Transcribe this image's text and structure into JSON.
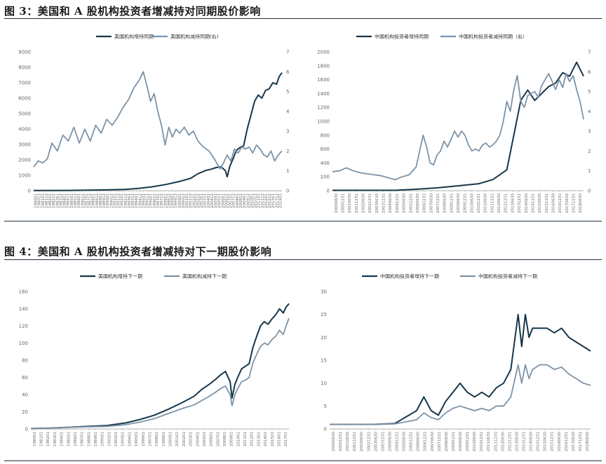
{
  "figures": [
    {
      "title": "图 3：美国和 A 股机构投资者增减持对同期股价影响"
    },
    {
      "title": "图 4：美国和 A 股机构投资者增减持对下一期股价影响"
    }
  ],
  "colors": {
    "dark": "#17364a",
    "light": "#7c93a8"
  },
  "chart_data": [
    {
      "type": "line",
      "series": [
        {
          "name": "美国机构增持同期",
          "axis": "left",
          "x": [
            0,
            20,
            40,
            60,
            80,
            100,
            115,
            130,
            145,
            160,
            172,
            180,
            188,
            195,
            200,
            205,
            210,
            212,
            215,
            218,
            222,
            226,
            230,
            234,
            238,
            242,
            246,
            250,
            254,
            258,
            262,
            266,
            269,
            272
          ],
          "values": [
            10,
            15,
            20,
            30,
            50,
            80,
            150,
            250,
            400,
            600,
            800,
            1100,
            1300,
            1400,
            1500,
            1550,
            1300,
            900,
            1600,
            2000,
            2600,
            2800,
            2900,
            4000,
            4900,
            5800,
            6200,
            6000,
            6500,
            6600,
            7000,
            6900,
            7400,
            7650
          ]
        },
        {
          "name": "美国机构减持同期(右)",
          "axis": "right",
          "x": [
            0,
            5,
            10,
            15,
            20,
            26,
            32,
            38,
            44,
            50,
            56,
            62,
            68,
            74,
            80,
            86,
            92,
            98,
            104,
            110,
            116,
            120,
            124,
            128,
            132,
            136,
            140,
            144,
            148,
            152,
            156,
            160,
            165,
            170,
            175,
            180,
            186,
            192,
            198,
            204,
            208,
            212,
            216,
            220,
            224,
            228,
            232,
            236,
            240,
            244,
            248,
            252,
            256,
            260,
            264,
            268,
            272
          ],
          "values": [
            1.2,
            1.5,
            1.4,
            1.6,
            2.4,
            2.0,
            2.8,
            2.5,
            3.2,
            2.4,
            3.1,
            2.5,
            3.3,
            2.9,
            3.6,
            3.3,
            3.7,
            4.2,
            4.6,
            5.2,
            5.6,
            6.0,
            5.3,
            4.5,
            4.9,
            4.0,
            3.3,
            2.3,
            3.2,
            2.7,
            3.1,
            2.9,
            3.2,
            2.8,
            3.0,
            2.5,
            2.2,
            2.0,
            1.6,
            1.1,
            1.4,
            1.8,
            1.5,
            2.1,
            1.9,
            2.2,
            2.1,
            2.2,
            1.9,
            2.3,
            2.1,
            1.8,
            1.7,
            2.0,
            1.5,
            1.8,
            2.0
          ]
        }
      ],
      "xticks": [
        "198001",
        "198012",
        "198101",
        "198112",
        "198201",
        "198212",
        "198301",
        "198312",
        "198401",
        "198412",
        "198501",
        "198512",
        "198601",
        "198612",
        "198701",
        "198712",
        "198801",
        "198812",
        "198901",
        "198912",
        "199001",
        "199012",
        "199101",
        "199112",
        "199201",
        "199212",
        "199301",
        "199312",
        "199401",
        "199412",
        "199501",
        "199512",
        "199601",
        "199612",
        "199701",
        "199712",
        "199801",
        "199812",
        "199901",
        "199912",
        "200001",
        "200012",
        "200101",
        "200112",
        "200201",
        "200212",
        "200301",
        "200312",
        "200401",
        "200412",
        "200501",
        "200512",
        "200601",
        "200612",
        "200701",
        "200712",
        "200801",
        "200812",
        "200901",
        "200912",
        "201001",
        "201012",
        "201101",
        "201112",
        "201201",
        "201212",
        "201301",
        "201312",
        "201401"
      ],
      "yleft": [
        0,
        1000,
        2000,
        3000,
        4000,
        5000,
        6000,
        7000,
        8000,
        9000
      ],
      "yright": [
        0,
        1,
        2,
        3,
        4,
        5,
        6,
        7
      ],
      "ylim_left": [
        0,
        9000
      ],
      "ylim_right": [
        0,
        7
      ],
      "xmax": 272
    },
    {
      "type": "line",
      "series": [
        {
          "name": "中国机构投资者增持同期",
          "axis": "left",
          "x": [
            0,
            6,
            12,
            18,
            24,
            30,
            34,
            38,
            42,
            46,
            50,
            52,
            54,
            56,
            58,
            60,
            62,
            64,
            66,
            68,
            70,
            72
          ],
          "values": [
            5,
            5,
            5,
            5,
            20,
            40,
            60,
            80,
            100,
            160,
            300,
            800,
            1300,
            1450,
            1300,
            1400,
            1500,
            1550,
            1700,
            1650,
            1850,
            1650
          ]
        },
        {
          "name": "中国机构投资者减持同期（右）",
          "axis": "right",
          "x": [
            0,
            2,
            4,
            6,
            8,
            10,
            12,
            14,
            16,
            18,
            20,
            22,
            24,
            25,
            26,
            27,
            28,
            29,
            30,
            31,
            32,
            33,
            34,
            35,
            36,
            37,
            38,
            39,
            40,
            41,
            42,
            43,
            44,
            45,
            46,
            47,
            48,
            49,
            50,
            51,
            52,
            53,
            54,
            55,
            56,
            57,
            58,
            59,
            60,
            61,
            62,
            63,
            64,
            65,
            66,
            67,
            68,
            69,
            70,
            71,
            72
          ],
          "values": [
            0.95,
            1.0,
            1.15,
            1.0,
            0.9,
            0.85,
            0.8,
            0.75,
            0.65,
            0.55,
            0.7,
            0.8,
            1.2,
            2.0,
            2.8,
            2.2,
            1.4,
            1.3,
            1.8,
            2.0,
            2.5,
            2.2,
            2.6,
            3.0,
            2.7,
            3.0,
            2.8,
            2.3,
            2.0,
            2.1,
            2.0,
            2.3,
            2.4,
            2.2,
            2.3,
            2.5,
            2.8,
            3.5,
            4.5,
            4.0,
            5.1,
            5.8,
            4.5,
            4.2,
            4.8,
            4.9,
            5.0,
            4.7,
            5.3,
            5.6,
            5.9,
            5.5,
            5.1,
            5.6,
            5.2,
            5.9,
            5.5,
            5.8,
            5.1,
            4.5,
            3.6
          ]
        }
      ],
      "xticks": [
        "20000630",
        "20001231",
        "20010630",
        "20011231",
        "20020630",
        "20021231",
        "20030630",
        "20031231",
        "20040630",
        "20041231",
        "20050630",
        "20051231",
        "20060630",
        "20061231",
        "20070630",
        "20071231",
        "20080630",
        "20081231",
        "20090630",
        "20091231",
        "20100630",
        "20101231",
        "20110630",
        "20111231",
        "20120630",
        "20121231",
        "20130630",
        "20131231",
        "20140630",
        "20141231",
        "20150630",
        "20151231",
        "20160630",
        "20161231",
        "20170630",
        "20171231",
        "20180630"
      ],
      "yleft": [
        0,
        200,
        400,
        600,
        800,
        1000,
        1200,
        1400,
        1600,
        1800,
        2000
      ],
      "yright": [
        0,
        1,
        2,
        3,
        4,
        5,
        6,
        7
      ],
      "ylim_left": [
        0,
        2000
      ],
      "ylim_right": [
        0,
        7
      ],
      "xmax": 72
    },
    {
      "type": "line",
      "series": [
        {
          "name": "美国机构增持下一期",
          "x": [
            0,
            20,
            40,
            60,
            80,
            100,
            115,
            130,
            145,
            160,
            172,
            180,
            188,
            195,
            200,
            205,
            210,
            212,
            215,
            218,
            222,
            226,
            230,
            234,
            238,
            242,
            246,
            250,
            254,
            258,
            262,
            266,
            269,
            272
          ],
          "values": [
            0.5,
            1,
            2,
            3,
            4,
            7,
            11,
            16,
            23,
            31,
            38,
            46,
            52,
            58,
            63,
            67,
            55,
            36,
            52,
            60,
            70,
            73,
            76,
            95,
            108,
            120,
            125,
            122,
            128,
            133,
            140,
            135,
            142,
            146
          ]
        },
        {
          "name": "美国机构减持下一期",
          "x": [
            0,
            20,
            40,
            60,
            80,
            100,
            115,
            130,
            145,
            160,
            172,
            180,
            188,
            195,
            200,
            205,
            210,
            212,
            215,
            218,
            222,
            226,
            230,
            234,
            238,
            242,
            246,
            250,
            254,
            258,
            262,
            266,
            269,
            272
          ],
          "values": [
            0.5,
            1,
            1.8,
            2.5,
            3,
            5,
            8,
            12,
            18,
            24,
            28,
            33,
            38,
            43,
            47,
            50,
            40,
            27,
            40,
            47,
            55,
            57,
            60,
            77,
            87,
            96,
            100,
            98,
            104,
            108,
            115,
            110,
            120,
            129
          ]
        }
      ],
      "xticks": [
        "198001",
        "198101",
        "198201",
        "198301",
        "198401",
        "198501",
        "198601",
        "198701",
        "198801",
        "198901",
        "199001",
        "199101",
        "199201",
        "199301",
        "199401",
        "199501",
        "199601",
        "199701",
        "199801",
        "199901",
        "200001",
        "200101",
        "200201",
        "200301",
        "200401",
        "200501",
        "200601",
        "200701",
        "200801",
        "200901",
        "201001",
        "201101",
        "201201",
        "201301",
        "201401",
        "201501",
        "201601",
        "201701"
      ],
      "yleft": [
        0,
        20,
        40,
        60,
        80,
        100,
        120,
        140,
        160
      ],
      "ylim_left": [
        0,
        160
      ],
      "xmax": 272
    },
    {
      "type": "line",
      "series": [
        {
          "name": "中国机构投资者增持下一期",
          "x": [
            0,
            6,
            12,
            18,
            24,
            26,
            28,
            30,
            32,
            34,
            36,
            38,
            40,
            42,
            44,
            46,
            48,
            50,
            52,
            53,
            54,
            55,
            56,
            57,
            58,
            60,
            62,
            64,
            66,
            68,
            70,
            72
          ],
          "values": [
            1,
            1,
            1,
            1.2,
            4,
            7,
            4,
            3,
            6,
            8,
            10,
            8,
            7,
            8,
            7,
            9,
            10,
            13,
            25,
            18,
            25,
            20,
            22,
            22,
            22,
            22,
            21,
            22,
            20,
            19,
            18,
            17
          ]
        },
        {
          "name": "中国机构投资者减持下一期",
          "x": [
            0,
            6,
            12,
            18,
            24,
            26,
            28,
            30,
            32,
            34,
            36,
            38,
            40,
            42,
            44,
            46,
            48,
            50,
            52,
            53,
            54,
            55,
            56,
            57,
            58,
            60,
            62,
            64,
            66,
            68,
            70,
            72
          ],
          "values": [
            1,
            1,
            1,
            1.1,
            2,
            3.5,
            2.5,
            2,
            3.5,
            4.5,
            5,
            4.5,
            4,
            4.5,
            4,
            5,
            5,
            7,
            14,
            10,
            14,
            11,
            13,
            13.5,
            14,
            14,
            13,
            13.5,
            12,
            11,
            10,
            9.5
          ]
        }
      ],
      "xticks": [
        "20000630",
        "20001231",
        "20010630",
        "20011231",
        "20020630",
        "20021231",
        "20030630",
        "20031231",
        "20040630",
        "20041231",
        "20050630",
        "20051231",
        "20060630",
        "20061231",
        "20070630",
        "20071231",
        "20080630",
        "20081231",
        "20090630",
        "20091231",
        "20100630",
        "20101231",
        "20110630",
        "20111231",
        "20120630",
        "20121231",
        "20130630",
        "20131231",
        "20140630",
        "20141231",
        "20150630",
        "20151231",
        "20160630",
        "20161231",
        "20170630",
        "20171231",
        "20180630"
      ],
      "yleft": [
        0,
        5,
        10,
        15,
        20,
        25,
        30
      ],
      "ylim_left": [
        0,
        30
      ],
      "xmax": 72
    }
  ]
}
